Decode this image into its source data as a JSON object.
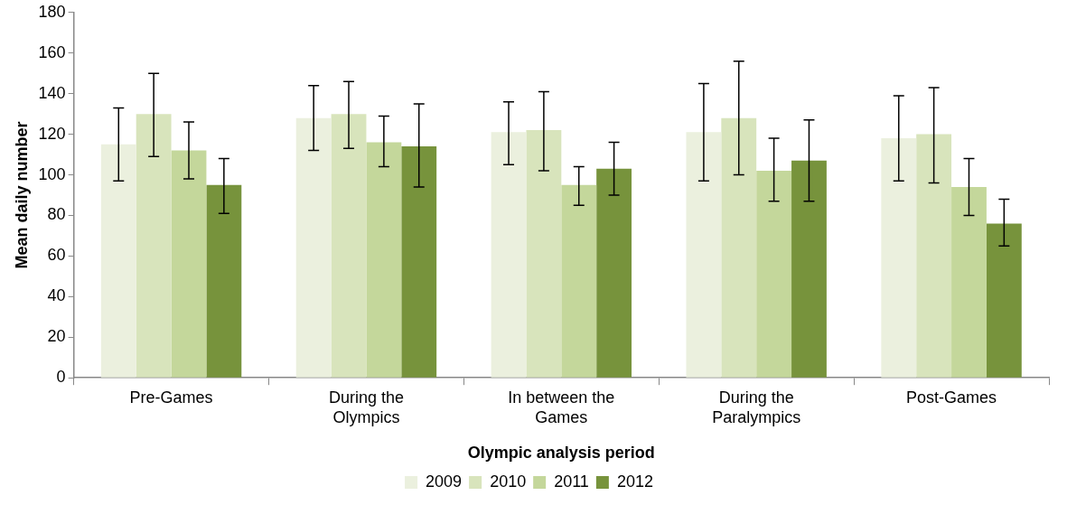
{
  "chart_data": {
    "type": "bar",
    "xlabel": "Olympic analysis period",
    "ylabel": "Mean daily number",
    "categories": [
      "Pre-Games",
      "During the Olympics",
      "In between the Games",
      "During the Paralympics",
      "Post-Games"
    ],
    "series": [
      {
        "name": "2009",
        "color": "#ebf0de",
        "values": [
          115,
          128,
          121,
          121,
          118
        ],
        "errors": [
          [
            97,
            133
          ],
          [
            112,
            144
          ],
          [
            105,
            136
          ],
          [
            97,
            145
          ],
          [
            97,
            139
          ]
        ]
      },
      {
        "name": "2010",
        "color": "#d8e4bc",
        "values": [
          130,
          130,
          122,
          128,
          120
        ],
        "errors": [
          [
            109,
            150
          ],
          [
            113,
            146
          ],
          [
            102,
            141
          ],
          [
            100,
            156
          ],
          [
            96,
            143
          ]
        ]
      },
      {
        "name": "2011",
        "color": "#c4d79b",
        "values": [
          112,
          116,
          95,
          102,
          94
        ],
        "errors": [
          [
            98,
            126
          ],
          [
            104,
            129
          ],
          [
            85,
            104
          ],
          [
            87,
            118
          ],
          [
            80,
            108
          ]
        ]
      },
      {
        "name": "2012",
        "color": "#77933c",
        "values": [
          95,
          114,
          103,
          107,
          76
        ],
        "errors": [
          [
            81,
            108
          ],
          [
            94,
            135
          ],
          [
            90,
            116
          ],
          [
            87,
            127
          ],
          [
            65,
            88
          ]
        ]
      }
    ],
    "ylim": [
      0,
      180
    ],
    "yticks": [
      0,
      20,
      40,
      60,
      80,
      100,
      120,
      140,
      160,
      180
    ],
    "grid": false,
    "legend": "bottom"
  }
}
